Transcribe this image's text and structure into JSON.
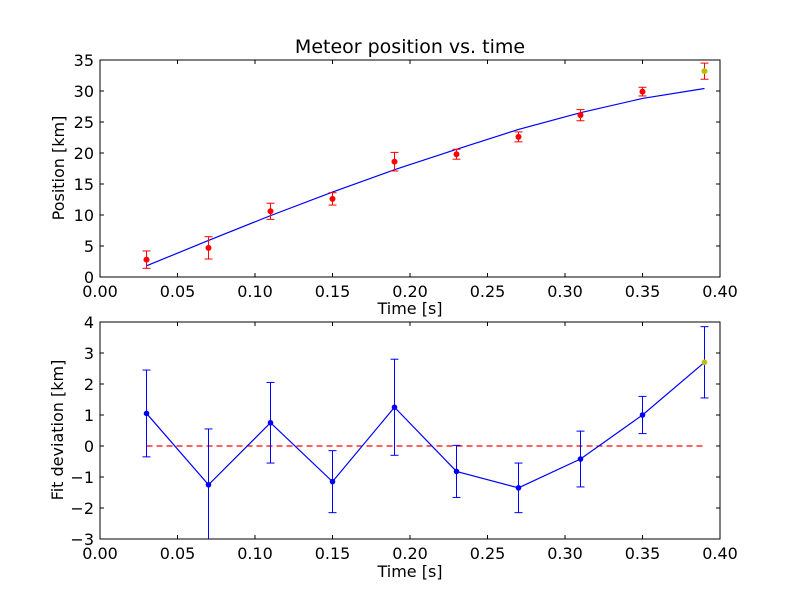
{
  "chart_data": [
    {
      "type": "scatter",
      "title": "Meteor position vs. time",
      "xlabel": "Time [s]",
      "ylabel": "Position [km]",
      "xlim": [
        0.0,
        0.4
      ],
      "ylim": [
        0,
        35
      ],
      "xticks": [
        "0.00",
        "0.05",
        "0.10",
        "0.15",
        "0.20",
        "0.25",
        "0.30",
        "0.35",
        "0.40"
      ],
      "yticks": [
        "0",
        "5",
        "10",
        "15",
        "20",
        "25",
        "30",
        "35"
      ],
      "grid": false,
      "colors": {
        "fit": "#0000ff",
        "points": "#ff0000",
        "last_point": "#bfbf00"
      },
      "series": [
        {
          "kind": "points_with_errorbars",
          "x": [
            0.03,
            0.07,
            0.11,
            0.15,
            0.19,
            0.23,
            0.27,
            0.31,
            0.35,
            0.39
          ],
          "y": [
            2.8,
            4.7,
            10.6,
            12.6,
            18.6,
            19.8,
            22.6,
            26.1,
            29.9,
            33.2
          ],
          "err": [
            1.4,
            1.8,
            1.3,
            1.0,
            1.5,
            0.8,
            0.8,
            0.9,
            0.7,
            1.3
          ]
        },
        {
          "kind": "fit_line",
          "x": [
            0.03,
            0.07,
            0.11,
            0.15,
            0.19,
            0.23,
            0.27,
            0.31,
            0.35,
            0.39
          ],
          "y": [
            1.8,
            5.9,
            9.9,
            13.7,
            17.3,
            20.6,
            23.8,
            26.5,
            28.8,
            30.4
          ]
        }
      ]
    },
    {
      "type": "line",
      "title": "",
      "xlabel": "Time [s]",
      "ylabel": "Fit deviation [km]",
      "xlim": [
        0.0,
        0.4
      ],
      "ylim": [
        -3,
        4
      ],
      "xticks": [
        "0.00",
        "0.05",
        "0.10",
        "0.15",
        "0.20",
        "0.25",
        "0.30",
        "0.35",
        "0.40"
      ],
      "yticks": [
        "−3",
        "−2",
        "−1",
        "0",
        "1",
        "2",
        "3",
        "4"
      ],
      "grid": false,
      "colors": {
        "line": "#0000ff",
        "zero": "#ff0000",
        "last_point": "#bfbf00"
      },
      "series": [
        {
          "kind": "deviation_with_errorbars",
          "x": [
            0.03,
            0.07,
            0.11,
            0.15,
            0.19,
            0.23,
            0.27,
            0.31,
            0.35,
            0.39
          ],
          "y": [
            1.05,
            -1.25,
            0.75,
            -1.15,
            1.25,
            -0.82,
            -1.35,
            -0.42,
            1.0,
            2.7
          ],
          "err_lo": [
            1.4,
            1.8,
            1.3,
            1.0,
            1.55,
            0.84,
            0.8,
            0.9,
            0.6,
            1.15
          ],
          "err_hi": [
            1.4,
            1.8,
            1.3,
            1.0,
            1.55,
            0.84,
            0.8,
            0.9,
            0.6,
            1.15
          ]
        },
        {
          "kind": "zero_reference",
          "x": [
            0.03,
            0.39
          ],
          "y": [
            0,
            0
          ]
        }
      ]
    }
  ]
}
